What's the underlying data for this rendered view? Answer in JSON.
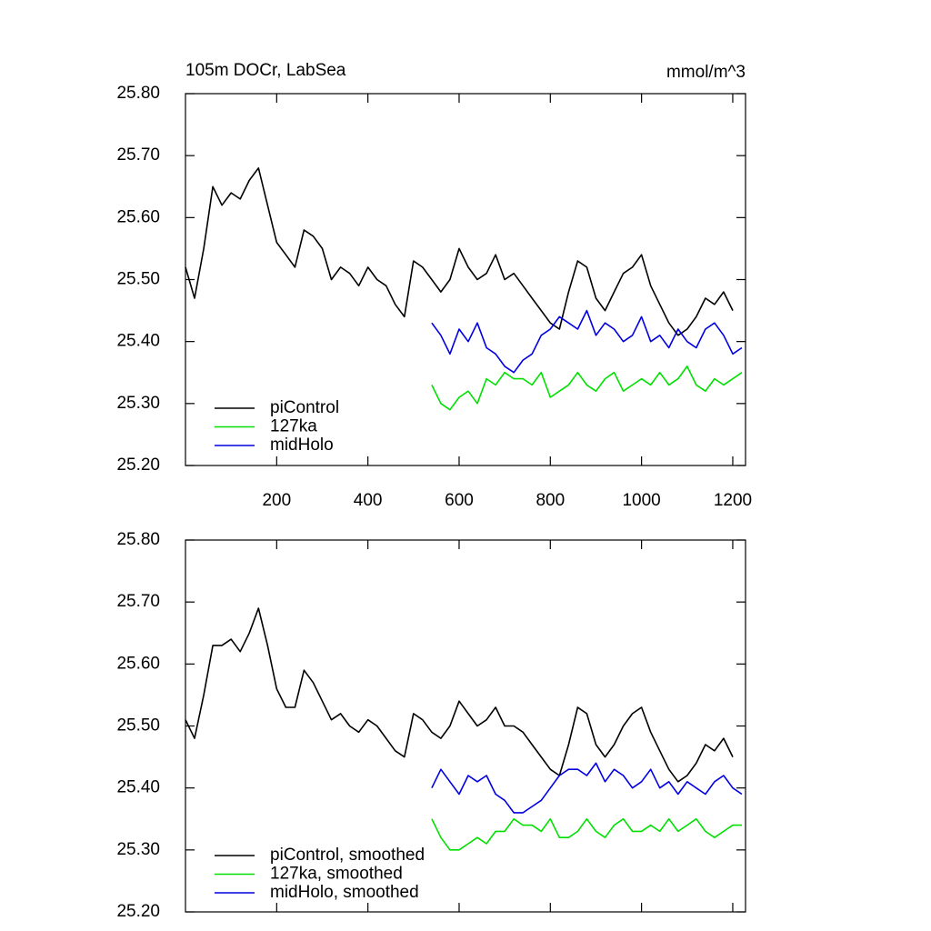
{
  "chart_data": [
    {
      "type": "line",
      "title": "105m DOCr, LabSea",
      "units": "mmol/m^3",
      "x": [
        0,
        20,
        40,
        60,
        80,
        100,
        120,
        140,
        160,
        180,
        200,
        220,
        240,
        260,
        280,
        300,
        320,
        340,
        360,
        380,
        400,
        420,
        440,
        460,
        480,
        500,
        520,
        540,
        560,
        580,
        600,
        620,
        640,
        660,
        680,
        700,
        720,
        740,
        760,
        780,
        800,
        820,
        840,
        860,
        880,
        900,
        920,
        940,
        960,
        980,
        1000,
        1020,
        1040,
        1060,
        1080,
        1100,
        1120,
        1140,
        1160,
        1180,
        1200,
        1220
      ],
      "xlim": [
        0,
        1228
      ],
      "xticks": [
        200,
        400,
        600,
        800,
        1000,
        1200
      ],
      "ylim": [
        25.2,
        25.8
      ],
      "yticks": [
        {
          "value": 25.2,
          "label": "25.20"
        },
        {
          "value": 25.3,
          "label": "25.30"
        },
        {
          "value": 25.4,
          "label": "25.40"
        },
        {
          "value": 25.5,
          "label": "25.50"
        },
        {
          "value": 25.6,
          "label": "25.60"
        },
        {
          "value": 25.7,
          "label": "25.70"
        },
        {
          "value": 25.8,
          "label": "25.80"
        }
      ],
      "series": [
        {
          "name": "piControl",
          "color": "#000000",
          "values": [
            25.52,
            25.47,
            25.55,
            25.65,
            25.62,
            25.64,
            25.63,
            25.66,
            25.68,
            25.62,
            25.56,
            25.54,
            25.52,
            25.58,
            25.57,
            25.55,
            25.5,
            25.52,
            25.51,
            25.49,
            25.52,
            25.5,
            25.49,
            25.46,
            25.44,
            25.53,
            25.52,
            25.5,
            25.48,
            25.5,
            25.55,
            25.52,
            25.5,
            25.51,
            25.54,
            25.5,
            25.51,
            25.49,
            25.47,
            25.45,
            25.43,
            25.42,
            25.48,
            25.53,
            25.52,
            25.47,
            25.45,
            25.48,
            25.51,
            25.52,
            25.54,
            25.49,
            25.46,
            25.43,
            25.41,
            25.42,
            25.44,
            25.47,
            25.46,
            25.48,
            25.45,
            null
          ]
        },
        {
          "name": "127ka",
          "color": "#00e000",
          "values": [
            null,
            null,
            null,
            null,
            null,
            null,
            null,
            null,
            null,
            null,
            null,
            null,
            null,
            null,
            null,
            null,
            null,
            null,
            null,
            null,
            null,
            null,
            null,
            null,
            null,
            null,
            null,
            25.33,
            25.3,
            25.29,
            25.31,
            25.32,
            25.3,
            25.34,
            25.33,
            25.35,
            25.34,
            25.34,
            25.33,
            25.35,
            25.31,
            25.32,
            25.33,
            25.35,
            25.33,
            25.32,
            25.34,
            25.35,
            25.32,
            25.33,
            25.34,
            25.33,
            25.35,
            25.33,
            25.34,
            25.36,
            25.33,
            25.32,
            25.34,
            25.33,
            25.34,
            25.35
          ]
        },
        {
          "name": "midHolo",
          "color": "#0000e0",
          "values": [
            null,
            null,
            null,
            null,
            null,
            null,
            null,
            null,
            null,
            null,
            null,
            null,
            null,
            null,
            null,
            null,
            null,
            null,
            null,
            null,
            null,
            null,
            null,
            null,
            null,
            null,
            null,
            25.43,
            25.41,
            25.38,
            25.42,
            25.4,
            25.43,
            25.39,
            25.38,
            25.36,
            25.35,
            25.37,
            25.38,
            25.41,
            25.42,
            25.44,
            25.43,
            25.42,
            25.45,
            25.41,
            25.43,
            25.42,
            25.4,
            25.41,
            25.44,
            25.4,
            25.41,
            25.39,
            25.42,
            25.4,
            25.39,
            25.42,
            25.43,
            25.41,
            25.38,
            25.39
          ]
        }
      ]
    },
    {
      "type": "line",
      "x": [
        0,
        20,
        40,
        60,
        80,
        100,
        120,
        140,
        160,
        180,
        200,
        220,
        240,
        260,
        280,
        300,
        320,
        340,
        360,
        380,
        400,
        420,
        440,
        460,
        480,
        500,
        520,
        540,
        560,
        580,
        600,
        620,
        640,
        660,
        680,
        700,
        720,
        740,
        760,
        780,
        800,
        820,
        840,
        860,
        880,
        900,
        920,
        940,
        960,
        980,
        1000,
        1020,
        1040,
        1060,
        1080,
        1100,
        1120,
        1140,
        1160,
        1180,
        1200,
        1220
      ],
      "xlim": [
        0,
        1228
      ],
      "xticks": [
        200,
        400,
        600,
        800,
        1000,
        1200
      ],
      "ylim": [
        25.2,
        25.8
      ],
      "yticks": [
        {
          "value": 25.2,
          "label": "25.20"
        },
        {
          "value": 25.3,
          "label": "25.30"
        },
        {
          "value": 25.4,
          "label": "25.40"
        },
        {
          "value": 25.5,
          "label": "25.50"
        },
        {
          "value": 25.6,
          "label": "25.60"
        },
        {
          "value": 25.7,
          "label": "25.70"
        },
        {
          "value": 25.8,
          "label": "25.80"
        }
      ],
      "series": [
        {
          "name": "piControl, smoothed",
          "color": "#000000",
          "values": [
            25.51,
            25.48,
            25.55,
            25.63,
            25.63,
            25.64,
            25.62,
            25.65,
            25.69,
            25.63,
            25.56,
            25.53,
            25.53,
            25.59,
            25.57,
            25.54,
            25.51,
            25.52,
            25.5,
            25.49,
            25.51,
            25.5,
            25.48,
            25.46,
            25.45,
            25.52,
            25.51,
            25.49,
            25.48,
            25.5,
            25.54,
            25.52,
            25.5,
            25.51,
            25.53,
            25.5,
            25.5,
            25.49,
            25.47,
            25.45,
            25.43,
            25.42,
            25.47,
            25.53,
            25.52,
            25.47,
            25.45,
            25.47,
            25.5,
            25.52,
            25.53,
            25.49,
            25.46,
            25.43,
            25.41,
            25.42,
            25.44,
            25.47,
            25.46,
            25.48,
            25.45,
            null
          ]
        },
        {
          "name": "127ka, smoothed",
          "color": "#00e000",
          "values": [
            null,
            null,
            null,
            null,
            null,
            null,
            null,
            null,
            null,
            null,
            null,
            null,
            null,
            null,
            null,
            null,
            null,
            null,
            null,
            null,
            null,
            null,
            null,
            null,
            null,
            null,
            null,
            25.35,
            25.32,
            25.3,
            25.3,
            25.31,
            25.32,
            25.31,
            25.33,
            25.33,
            25.35,
            25.34,
            25.34,
            25.33,
            25.35,
            25.32,
            25.32,
            25.33,
            25.35,
            25.33,
            25.32,
            25.34,
            25.35,
            25.33,
            25.33,
            25.34,
            25.33,
            25.35,
            25.33,
            25.34,
            25.35,
            25.33,
            25.32,
            25.33,
            25.34,
            25.34
          ]
        },
        {
          "name": "midHolo, smoothed",
          "color": "#0000e0",
          "values": [
            null,
            null,
            null,
            null,
            null,
            null,
            null,
            null,
            null,
            null,
            null,
            null,
            null,
            null,
            null,
            null,
            null,
            null,
            null,
            null,
            null,
            null,
            null,
            null,
            null,
            null,
            null,
            25.4,
            25.43,
            25.41,
            25.39,
            25.42,
            25.41,
            25.42,
            25.39,
            25.38,
            25.36,
            25.36,
            25.37,
            25.38,
            25.4,
            25.42,
            25.43,
            25.43,
            25.42,
            25.44,
            25.41,
            25.43,
            25.42,
            25.4,
            25.41,
            25.43,
            25.4,
            25.41,
            25.39,
            25.41,
            25.4,
            25.39,
            25.41,
            25.42,
            25.4,
            25.39
          ]
        }
      ]
    }
  ]
}
